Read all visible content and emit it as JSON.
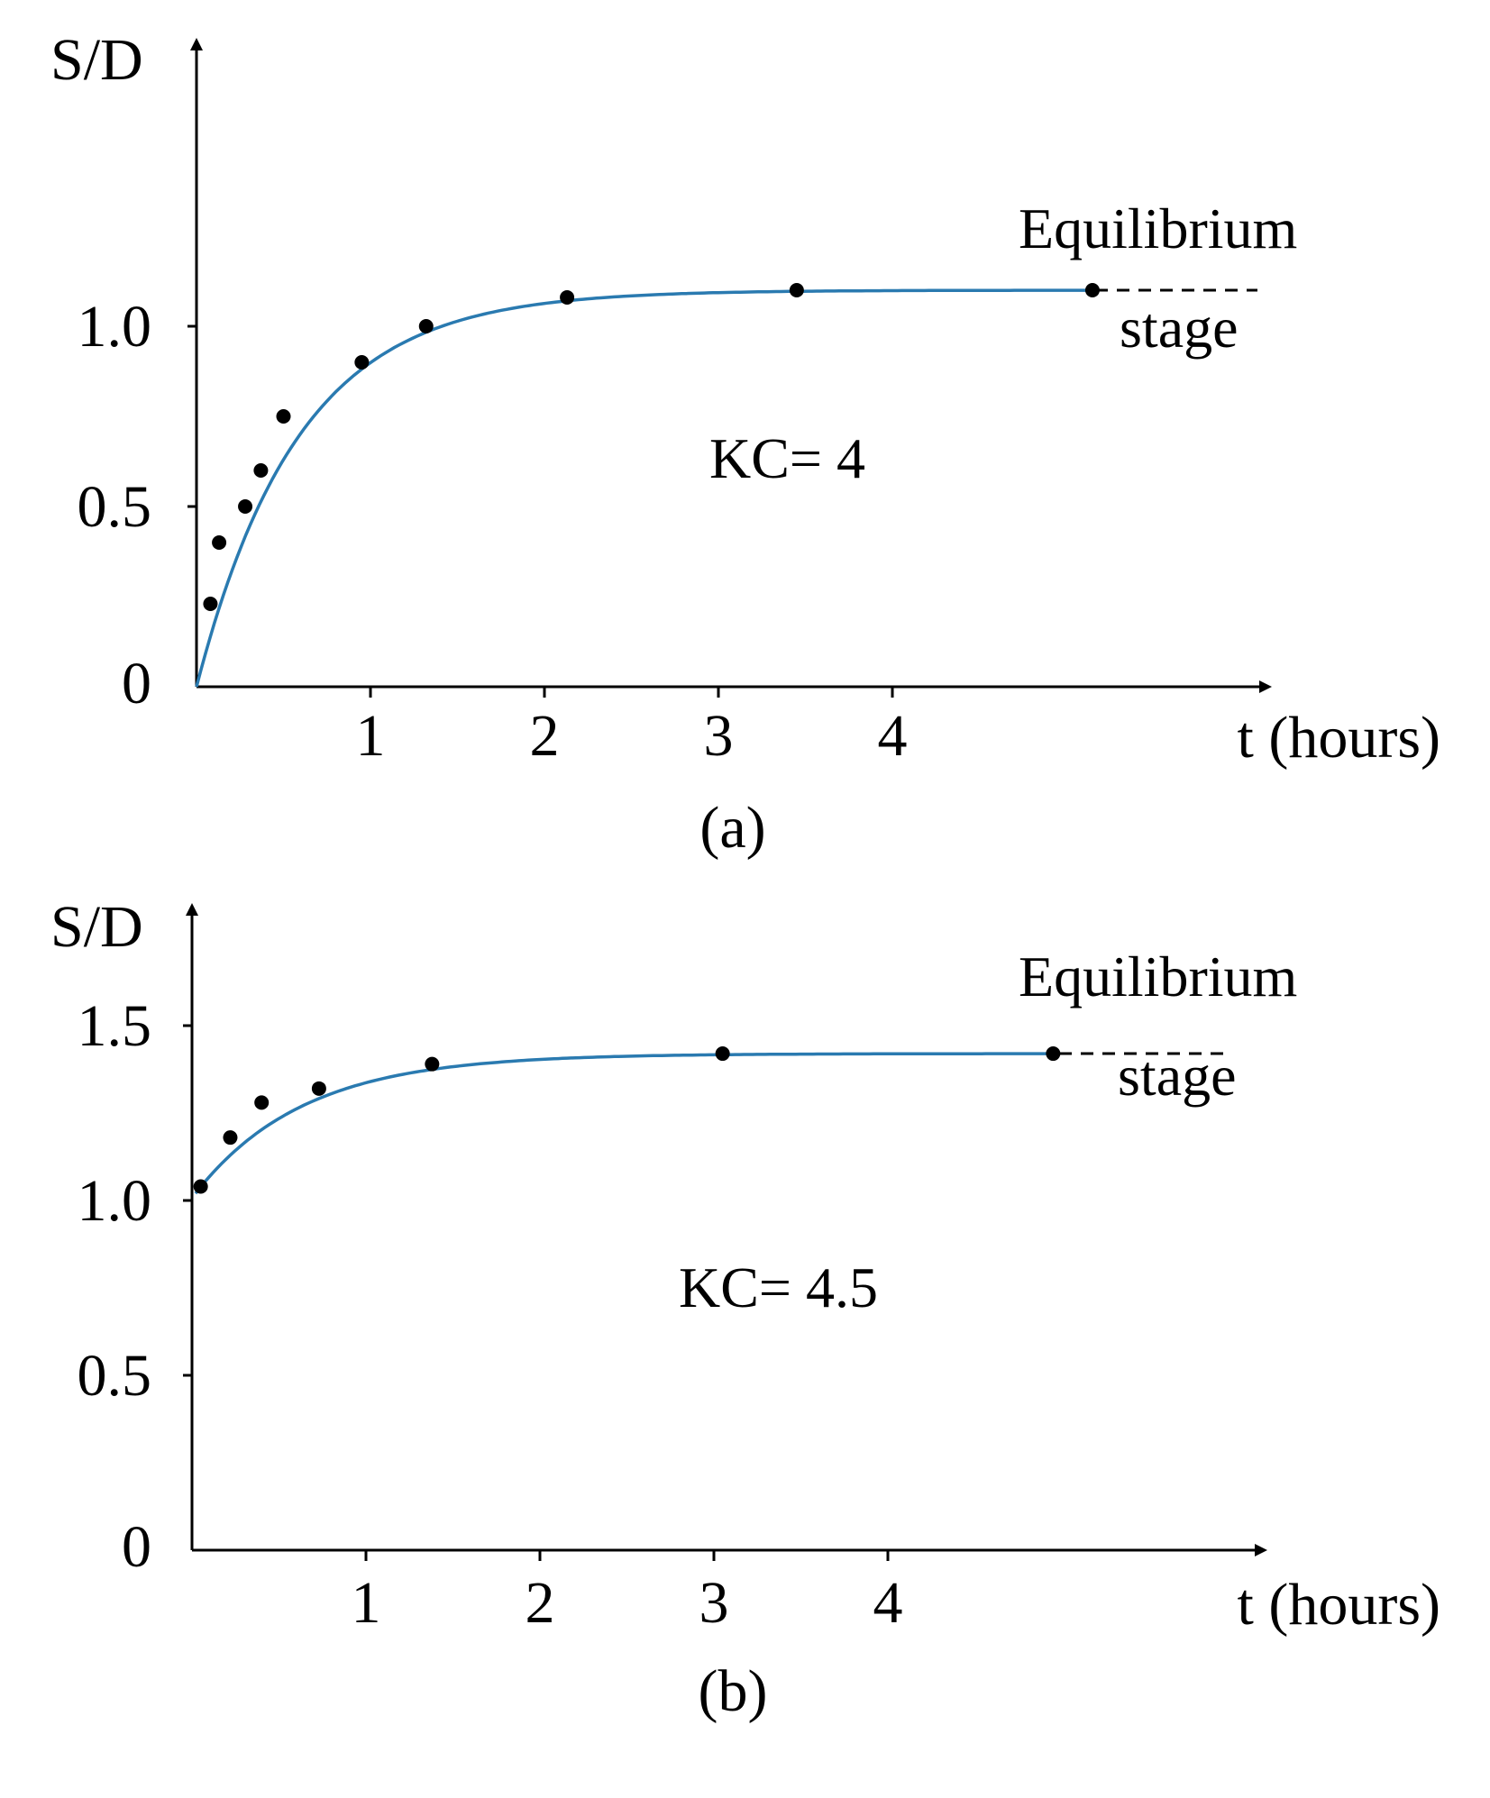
{
  "chart_data": [
    {
      "type": "line",
      "panel_label": "(a)",
      "ylabel": "S/D",
      "xlabel": "t (hours)",
      "y_ticks": [
        "0",
        "0.5",
        "1.0"
      ],
      "y_tick_values": [
        0,
        0.5,
        1.0
      ],
      "x_ticks": [
        "1",
        "2",
        "3",
        "4"
      ],
      "x_tick_values": [
        1,
        2,
        3,
        4
      ],
      "xlim": [
        0,
        6.1
      ],
      "ylim": [
        0,
        1.8
      ],
      "annotation": "KC= 4",
      "equilibrium_label_top": "Equilibrium",
      "equilibrium_label_bottom": "stage",
      "equilibrium_value": 1.1,
      "points_x": [
        0.08,
        0.13,
        0.28,
        0.37,
        0.5,
        0.95,
        1.32,
        2.13,
        3.45,
        5.15
      ],
      "points_y": [
        0.23,
        0.4,
        0.5,
        0.6,
        0.75,
        0.9,
        1.0,
        1.08,
        1.1,
        1.1
      ],
      "line_color": "#2a7ab0"
    },
    {
      "type": "line",
      "panel_label": "(b)",
      "ylabel": "S/D",
      "xlabel": "t (hours)",
      "y_ticks": [
        "0",
        "0.5",
        "1.0",
        "1.5"
      ],
      "y_tick_values": [
        0,
        0.5,
        1.0,
        1.5
      ],
      "x_ticks": [
        "1",
        "2",
        "3",
        "4"
      ],
      "x_tick_values": [
        1,
        2,
        3,
        4
      ],
      "xlim": [
        0,
        6.1
      ],
      "ylim": [
        0,
        1.8
      ],
      "annotation": "KC= 4.5",
      "equilibrium_label_top": "Equilibrium",
      "equilibrium_label_bottom": "stage",
      "equilibrium_value": 1.42,
      "points_x": [
        0.05,
        0.22,
        0.4,
        0.73,
        1.38,
        3.05,
        4.95
      ],
      "points_y": [
        1.04,
        1.18,
        1.28,
        1.32,
        1.39,
        1.42,
        1.42
      ],
      "line_color": "#2a7ab0"
    }
  ]
}
